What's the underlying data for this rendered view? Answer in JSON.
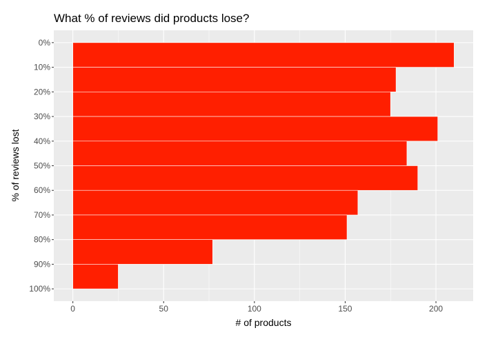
{
  "chart_data": {
    "type": "bar",
    "orientation": "horizontal",
    "title": "What % of reviews did products lose?",
    "xlabel": "# of products",
    "ylabel": "% of reviews lost",
    "y_tick_labels": [
      "0%",
      "10%",
      "20%",
      "30%",
      "40%",
      "50%",
      "60%",
      "70%",
      "80%",
      "90%",
      "100%"
    ],
    "y_ticks": [
      0,
      10,
      20,
      30,
      40,
      50,
      60,
      70,
      80,
      90,
      100
    ],
    "bins": [
      [
        0,
        10
      ],
      [
        10,
        20
      ],
      [
        20,
        30
      ],
      [
        30,
        40
      ],
      [
        40,
        50
      ],
      [
        50,
        60
      ],
      [
        60,
        70
      ],
      [
        70,
        80
      ],
      [
        80,
        90
      ],
      [
        90,
        100
      ]
    ],
    "values": [
      210,
      178,
      175,
      201,
      184,
      190,
      157,
      151,
      77,
      25
    ],
    "x_ticks": [
      0,
      50,
      100,
      150,
      200
    ],
    "x_tick_labels": [
      "0",
      "50",
      "100",
      "150",
      "200"
    ],
    "xlim": [
      -10.5,
      220.5
    ],
    "ylim": [
      -5,
      105
    ],
    "y_reversed": true,
    "grid": true,
    "colors": {
      "bar": "#ff1f00",
      "panel": "#ebebeb",
      "grid": "#ffffff"
    }
  }
}
